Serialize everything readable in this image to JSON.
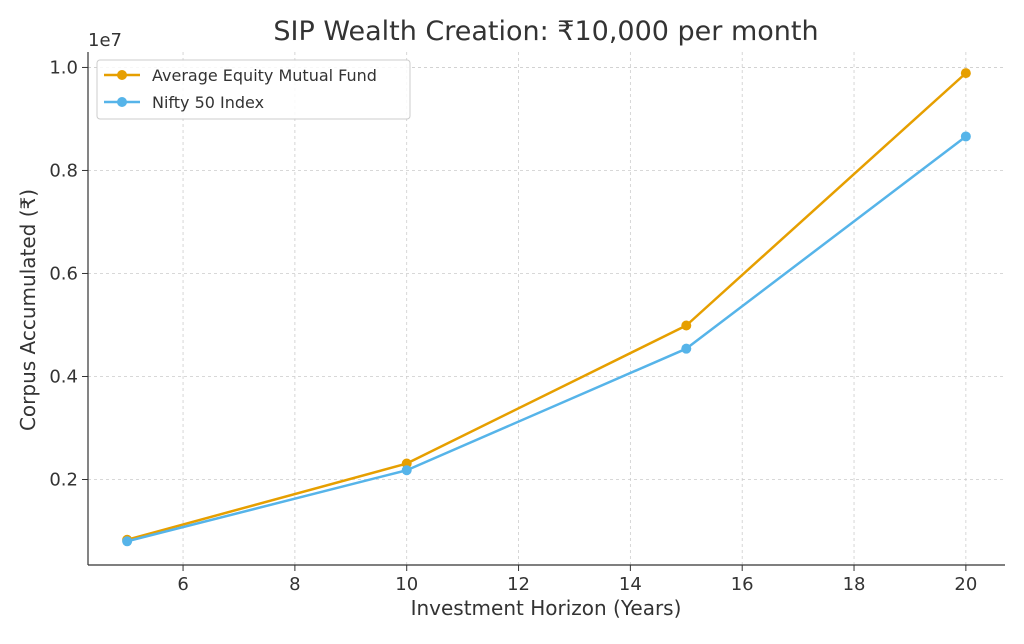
{
  "chart_data": {
    "type": "line",
    "title": "SIP Wealth Creation: ₹10,000 per month",
    "xlabel": "Investment Horizon (Years)",
    "ylabel": "Corpus Accumulated (₹)",
    "y_offset_label": "1e7",
    "x": [
      5,
      10,
      15,
      20
    ],
    "xlim": [
      4.3,
      20.7
    ],
    "ylim": [
      0.034,
      1.03
    ],
    "x_ticks": [
      6,
      8,
      10,
      12,
      14,
      16,
      18,
      20
    ],
    "x_tick_labels": [
      "6",
      "8",
      "10",
      "12",
      "14",
      "16",
      "18",
      "20"
    ],
    "y_ticks": [
      0.2,
      0.4,
      0.6,
      0.8,
      1.0
    ],
    "y_tick_labels": [
      "0.2",
      "0.4",
      "0.6",
      "0.8",
      "1.0"
    ],
    "y_unit_scale": 10000000,
    "grid": true,
    "legend_position": "top-left",
    "series": [
      {
        "name": "Average Equity Mutual Fund",
        "color": "#E69F00",
        "values": [
          0.083,
          0.231,
          0.499,
          0.989
        ],
        "marker": "circle"
      },
      {
        "name": "Nifty 50 Index",
        "color": "#56B4E9",
        "values": [
          0.08,
          0.218,
          0.454,
          0.866
        ],
        "marker": "circle"
      }
    ]
  }
}
